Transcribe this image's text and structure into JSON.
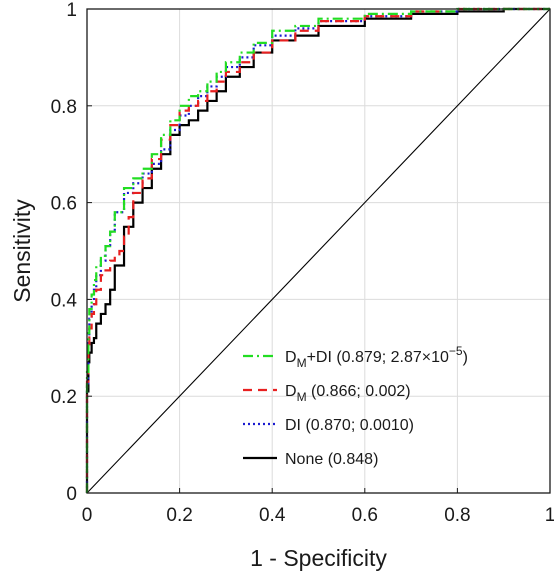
{
  "chart_data": {
    "type": "line",
    "xlabel": "1 - Specificity",
    "ylabel": "Sensitivity",
    "xlim": [
      0,
      1
    ],
    "ylim": [
      0,
      1
    ],
    "x_ticks": [
      "0",
      "0.2",
      "0.4",
      "0.6",
      "0.8",
      "1"
    ],
    "y_ticks": [
      "0",
      "0.2",
      "0.4",
      "0.6",
      "0.8",
      "1"
    ],
    "grid": true,
    "legend_position": "bottom-right",
    "reference_line": {
      "x": [
        0,
        1
      ],
      "y": [
        0,
        1
      ],
      "color": "#000000"
    },
    "series": [
      {
        "name": "DM+DI (0.879; 2.87×10−5)",
        "legend_main": "D",
        "legend_sub": "M",
        "legend_rest": "+DI (0.879; 2.87×10",
        "legend_sup": "−5",
        "legend_end": ")",
        "color": "#22dd22",
        "dash": "10 4 2 4",
        "x": [
          0,
          0.003,
          0.005,
          0.01,
          0.015,
          0.02,
          0.03,
          0.04,
          0.05,
          0.06,
          0.08,
          0.1,
          0.12,
          0.14,
          0.16,
          0.18,
          0.2,
          0.22,
          0.24,
          0.26,
          0.28,
          0.3,
          0.33,
          0.36,
          0.4,
          0.45,
          0.5,
          0.6,
          0.7,
          0.8,
          0.9,
          1
        ],
        "y": [
          0,
          0.25,
          0.33,
          0.38,
          0.41,
          0.44,
          0.47,
          0.49,
          0.51,
          0.54,
          0.58,
          0.63,
          0.65,
          0.67,
          0.7,
          0.74,
          0.77,
          0.8,
          0.82,
          0.83,
          0.85,
          0.87,
          0.89,
          0.91,
          0.93,
          0.955,
          0.965,
          0.98,
          0.99,
          0.995,
          1,
          1
        ]
      },
      {
        "name": "DM (0.866; 0.002)",
        "legend_main": "D",
        "legend_sub": "M",
        "legend_rest": " (0.866; 0.002)",
        "legend_sup": "",
        "legend_end": "",
        "color": "#e82020",
        "dash": "9 6",
        "x": [
          0,
          0.003,
          0.005,
          0.01,
          0.015,
          0.02,
          0.03,
          0.04,
          0.05,
          0.06,
          0.07,
          0.08,
          0.09,
          0.1,
          0.12,
          0.14,
          0.16,
          0.18,
          0.2,
          0.22,
          0.24,
          0.26,
          0.28,
          0.3,
          0.33,
          0.36,
          0.4,
          0.45,
          0.5,
          0.6,
          0.7,
          0.8,
          0.9,
          1
        ],
        "y": [
          0,
          0.23,
          0.3,
          0.34,
          0.37,
          0.39,
          0.42,
          0.45,
          0.46,
          0.48,
          0.49,
          0.5,
          0.53,
          0.57,
          0.62,
          0.65,
          0.69,
          0.73,
          0.76,
          0.79,
          0.8,
          0.81,
          0.83,
          0.85,
          0.87,
          0.89,
          0.91,
          0.935,
          0.955,
          0.975,
          0.985,
          0.995,
          1,
          1
        ]
      },
      {
        "name": "DI (0.870; 0.0010)",
        "legend_main": "DI (0.870; 0.0010)",
        "legend_sub": "",
        "legend_rest": "",
        "legend_sup": "",
        "legend_end": "",
        "color": "#1a1ad0",
        "dash": "2 3",
        "x": [
          0,
          0.003,
          0.005,
          0.01,
          0.015,
          0.02,
          0.03,
          0.04,
          0.05,
          0.06,
          0.08,
          0.1,
          0.12,
          0.14,
          0.16,
          0.18,
          0.2,
          0.22,
          0.24,
          0.26,
          0.28,
          0.3,
          0.33,
          0.36,
          0.4,
          0.45,
          0.5,
          0.6,
          0.7,
          0.8,
          0.9,
          1
        ],
        "y": [
          0,
          0.22,
          0.31,
          0.36,
          0.39,
          0.42,
          0.45,
          0.48,
          0.51,
          0.54,
          0.58,
          0.62,
          0.64,
          0.66,
          0.68,
          0.71,
          0.75,
          0.78,
          0.8,
          0.82,
          0.84,
          0.86,
          0.88,
          0.9,
          0.925,
          0.945,
          0.96,
          0.975,
          0.985,
          0.995,
          1,
          1
        ]
      },
      {
        "name": "None (0.848)",
        "legend_main": "None (0.848)",
        "legend_sub": "",
        "legend_rest": "",
        "legend_sup": "",
        "legend_end": "",
        "color": "#000000",
        "dash": "",
        "x": [
          0,
          0.003,
          0.005,
          0.01,
          0.015,
          0.02,
          0.03,
          0.04,
          0.05,
          0.06,
          0.08,
          0.1,
          0.12,
          0.14,
          0.16,
          0.18,
          0.2,
          0.22,
          0.24,
          0.26,
          0.28,
          0.3,
          0.33,
          0.36,
          0.4,
          0.45,
          0.5,
          0.6,
          0.7,
          0.8,
          0.9,
          1
        ],
        "y": [
          0,
          0.21,
          0.27,
          0.29,
          0.31,
          0.32,
          0.35,
          0.37,
          0.39,
          0.42,
          0.47,
          0.55,
          0.6,
          0.63,
          0.67,
          0.7,
          0.74,
          0.76,
          0.77,
          0.79,
          0.81,
          0.83,
          0.86,
          0.88,
          0.91,
          0.935,
          0.945,
          0.965,
          0.98,
          0.99,
          0.995,
          1
        ]
      }
    ]
  }
}
